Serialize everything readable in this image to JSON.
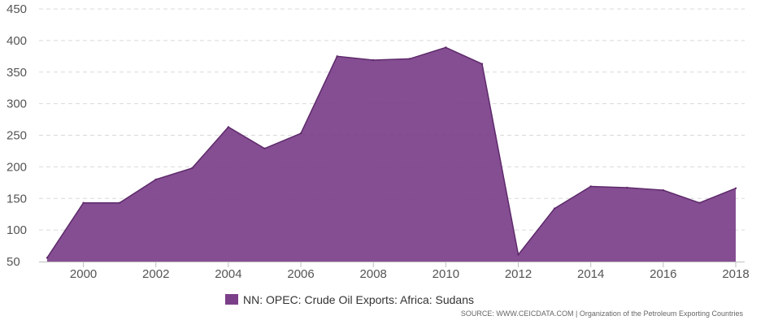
{
  "chart_data": {
    "type": "area",
    "title": "",
    "xlabel": "",
    "ylabel": "",
    "x": [
      1999,
      2000,
      2001,
      2002,
      2003,
      2004,
      2005,
      2006,
      2007,
      2008,
      2009,
      2010,
      2011,
      2012,
      2013,
      2014,
      2015,
      2016,
      2017,
      2018
    ],
    "series": [
      {
        "name": "NN: OPEC: Crude Oil Exports: Africa: Sudans",
        "color": "#7b3f89",
        "values": [
          56,
          143,
          143,
          180,
          198,
          263,
          229,
          253,
          375,
          369,
          371,
          389,
          363,
          61,
          134,
          169,
          167,
          163,
          143,
          166
        ]
      }
    ],
    "xlim": [
      1999,
      2018
    ],
    "ylim": [
      50,
      450
    ],
    "x_ticks": [
      "2000",
      "2002",
      "2004",
      "2006",
      "2008",
      "2010",
      "2012",
      "2014",
      "2016",
      "2018"
    ],
    "y_ticks": [
      "50",
      "100",
      "150",
      "200",
      "250",
      "300",
      "350",
      "400",
      "450"
    ],
    "grid": "horizontal-dashed",
    "legend_position": "bottom-center"
  },
  "source_text": "SOURCE: WWW.CEICDATA.COM | Organization of the Petroleum Exporting Countries"
}
